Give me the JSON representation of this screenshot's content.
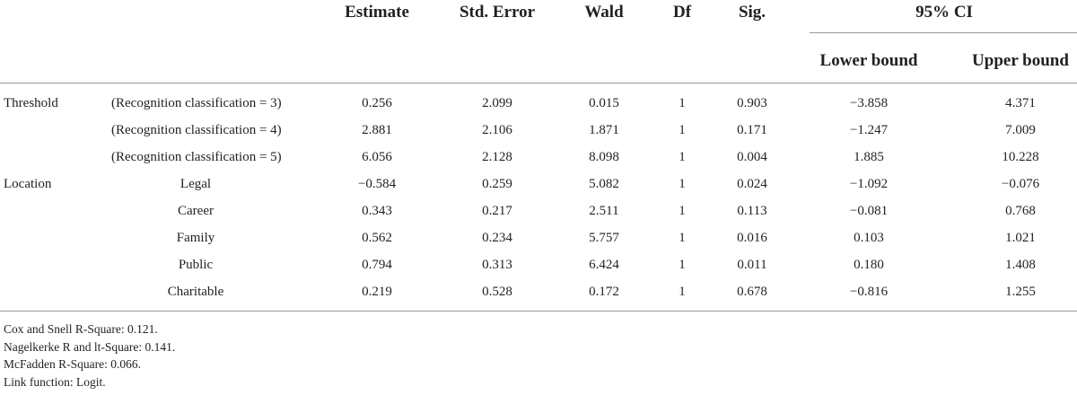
{
  "table": {
    "headers": {
      "estimate": "Estimate",
      "std_error": "Std. Error",
      "wald": "Wald",
      "df": "Df",
      "sig": "Sig.",
      "ci": "95% CI",
      "lower": "Lower bound",
      "upper": "Upper bound"
    },
    "rows": [
      {
        "group": "Threshold",
        "term": "(Recognition classification = 3)",
        "estimate": "0.256",
        "std_error": "2.099",
        "wald": "0.015",
        "df": "1",
        "sig": "0.903",
        "lower": "−3.858",
        "upper": "4.371"
      },
      {
        "group": "",
        "term": "(Recognition classification = 4)",
        "estimate": "2.881",
        "std_error": "2.106",
        "wald": "1.871",
        "df": "1",
        "sig": "0.171",
        "lower": "−1.247",
        "upper": "7.009"
      },
      {
        "group": "",
        "term": "(Recognition classification = 5)",
        "estimate": "6.056",
        "std_error": "2.128",
        "wald": "8.098",
        "df": "1",
        "sig": "0.004",
        "lower": "1.885",
        "upper": "10.228"
      },
      {
        "group": "Location",
        "term": "Legal",
        "estimate": "−0.584",
        "std_error": "0.259",
        "wald": "5.082",
        "df": "1",
        "sig": "0.024",
        "lower": "−1.092",
        "upper": "−0.076"
      },
      {
        "group": "",
        "term": "Career",
        "estimate": "0.343",
        "std_error": "0.217",
        "wald": "2.511",
        "df": "1",
        "sig": "0.113",
        "lower": "−0.081",
        "upper": "0.768"
      },
      {
        "group": "",
        "term": "Family",
        "estimate": "0.562",
        "std_error": "0.234",
        "wald": "5.757",
        "df": "1",
        "sig": "0.016",
        "lower": "0.103",
        "upper": "1.021"
      },
      {
        "group": "",
        "term": "Public",
        "estimate": "0.794",
        "std_error": "0.313",
        "wald": "6.424",
        "df": "1",
        "sig": "0.011",
        "lower": "0.180",
        "upper": "1.408"
      },
      {
        "group": "",
        "term": "Charitable",
        "estimate": "0.219",
        "std_error": "0.528",
        "wald": "0.172",
        "df": "1",
        "sig": "0.678",
        "lower": "−0.816",
        "upper": "1.255"
      }
    ]
  },
  "notes": [
    "Cox and Snell R-Square: 0.121.",
    "Nagelkerke R and lt-Square: 0.141.",
    "McFadden R-Square: 0.066.",
    "Link function: Logit."
  ]
}
